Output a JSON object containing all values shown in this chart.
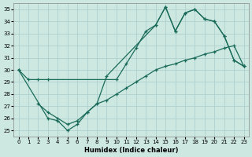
{
  "xlabel": "Humidex (Indice chaleur)",
  "background_color": "#cce8e0",
  "grid_color": "#aacccc",
  "line_color": "#1a6b5a",
  "ylim": [
    24.5,
    35.5
  ],
  "xlim": [
    -0.5,
    23.5
  ],
  "yticks": [
    25,
    26,
    27,
    28,
    29,
    30,
    31,
    32,
    33,
    34,
    35
  ],
  "xticks": [
    0,
    1,
    2,
    3,
    4,
    5,
    6,
    7,
    8,
    9,
    10,
    11,
    12,
    13,
    14,
    15,
    16,
    17,
    18,
    19,
    20,
    21,
    22,
    23
  ],
  "line1_x": [
    0,
    1,
    2,
    3,
    10,
    11,
    12,
    13,
    14,
    15,
    16,
    17,
    18,
    19,
    20,
    21,
    22,
    23
  ],
  "line1_y": [
    30.0,
    29.2,
    29.2,
    29.2,
    29.2,
    30.5,
    31.8,
    33.2,
    33.7,
    35.2,
    33.2,
    34.7,
    35.0,
    34.2,
    34.0,
    32.8,
    30.8,
    30.3
  ],
  "line2_x": [
    0,
    3,
    4,
    5,
    6,
    7,
    8,
    9,
    14,
    15,
    16,
    17,
    18,
    19,
    20,
    21,
    22,
    23
  ],
  "line2_y": [
    30.0,
    26.0,
    25.8,
    25.0,
    25.5,
    26.5,
    27.2,
    29.5,
    33.7,
    35.2,
    33.2,
    34.7,
    35.0,
    34.2,
    34.0,
    32.8,
    30.8,
    30.3
  ],
  "line3_x": [
    2,
    3,
    4,
    5,
    6,
    7,
    8,
    9,
    10,
    11,
    12,
    13,
    14,
    15,
    16,
    17,
    18,
    19,
    20,
    21,
    22,
    23
  ],
  "line3_y": [
    27.2,
    26.5,
    26.0,
    25.5,
    25.8,
    26.5,
    27.2,
    27.5,
    28.0,
    28.5,
    29.0,
    29.5,
    30.0,
    30.3,
    30.5,
    30.8,
    31.0,
    31.3,
    31.5,
    31.8,
    32.0,
    30.3
  ]
}
